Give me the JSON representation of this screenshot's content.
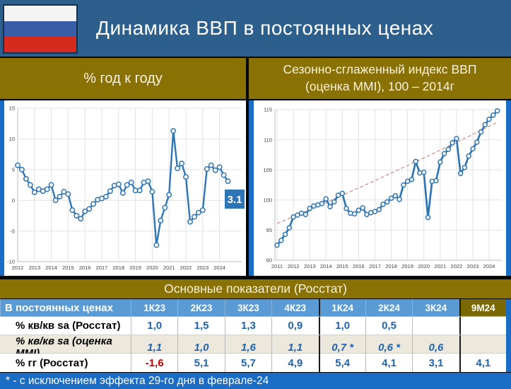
{
  "header": {
    "title": "Динамика ВВП в постоянных ценах",
    "flag": "russia-flag"
  },
  "panels": {
    "left": {
      "title": "% год к году"
    },
    "right": {
      "title_line1": "Сезонно-сглаженный индекс ВВП",
      "title_line2": "(оценка MMI), 100 – 2014г"
    }
  },
  "chart_data": [
    {
      "type": "line",
      "title": "% год к году",
      "series_name": "ВВП, % год к году, квартальные данные",
      "x_start": "2012Q1",
      "x_freq": "quarterly",
      "x_tick_labels": [
        "2012",
        "2013",
        "2014",
        "2015",
        "2016",
        "2017",
        "2018",
        "2019",
        "2020",
        "2021",
        "2022",
        "2023",
        "2024"
      ],
      "values": [
        5.7,
        5.0,
        3.5,
        2.5,
        1.3,
        1.8,
        1.5,
        1.8,
        2.5,
        0.0,
        0.6,
        1.4,
        1.0,
        -1.6,
        -2.5,
        -3.0,
        -1.8,
        -1.4,
        -0.6,
        0.1,
        0.3,
        0.6,
        1.5,
        2.4,
        2.6,
        1.2,
        2.5,
        2.9,
        1.6,
        1.6,
        2.9,
        3.1,
        1.4,
        -7.3,
        -3.3,
        -1.2,
        0.9,
        11.3,
        5.2,
        6.0,
        3.8,
        -3.5,
        -2.7,
        -2.0,
        -1.6,
        5.1,
        5.7,
        4.9,
        5.4,
        4.1,
        3.1
      ],
      "ylim": [
        -10,
        15
      ],
      "yticks": [
        -10,
        -5,
        0,
        5,
        10,
        15
      ],
      "grid": true,
      "legend": "none",
      "marker": "circle",
      "line_color": "#2e75b6",
      "last_point_label": "3.1"
    },
    {
      "type": "line",
      "title": "Сезонно-сглаженный индекс ВВП (оценка MMI), 100 – 2014г",
      "series_name": "Индекс ВВП sa, 100 = 2014",
      "x_start": "2011Q1",
      "x_freq": "quarterly",
      "x_tick_labels": [
        "2011",
        "2012",
        "2013",
        "2014",
        "2015",
        "2016",
        "2017",
        "2018",
        "2019",
        "2020",
        "2021",
        "2022",
        "2023",
        "2024"
      ],
      "values": [
        92.5,
        93.3,
        94.3,
        95.4,
        97.2,
        97.5,
        97.8,
        97.6,
        98.6,
        99.0,
        99.2,
        99.4,
        100.2,
        98.9,
        99.7,
        100.8,
        101.1,
        98.6,
        97.8,
        97.7,
        98.3,
        98.7,
        97.6,
        97.9,
        98.1,
        98.4,
        99.3,
        99.7,
        100.3,
        100.7,
        100.1,
        102.5,
        103.1,
        103.4,
        106.4,
        104.5,
        104.6,
        97.1,
        103.1,
        103.2,
        106.3,
        107.7,
        108.4,
        109.5,
        110.2,
        104.4,
        105.4,
        107.3,
        108.5,
        109.6,
        111.3,
        112.5,
        113.4,
        114.1,
        114.8
      ],
      "ylim": [
        90,
        115
      ],
      "yticks": [
        90,
        95,
        100,
        105,
        110,
        115
      ],
      "grid": true,
      "legend": "none",
      "marker": "circle",
      "line_color": "#2e75b6",
      "trend": {
        "type": "exponential-dashed",
        "start": 96.1,
        "end": 112.9,
        "color": "#cf8a85"
      }
    }
  ],
  "table": {
    "band_title": "Основные показатели (Росстат)",
    "header": [
      "В постоянных ценах",
      "1К23",
      "2К23",
      "3К23",
      "4К23",
      "1К24",
      "2К24",
      "3К24",
      "9М24"
    ],
    "rows": [
      {
        "label": "% кв/кв sa (Росстат)",
        "italic": false,
        "values": [
          "1,0",
          "1,5",
          "1,3",
          "0,9",
          "1,0",
          "0,5",
          "",
          ""
        ]
      },
      {
        "label": "% кв/кв sa (оценка MMI)",
        "italic": true,
        "values": [
          "1,1",
          "1,0",
          "1,6",
          "1,1",
          "0,7 *",
          "0,6 *",
          "0,6",
          ""
        ]
      },
      {
        "label": "% гг (Росстат)",
        "italic": false,
        "values": [
          "-1,6",
          "5,1",
          "5,7",
          "4,9",
          "5,4",
          "4,1",
          "3,1",
          "4,1"
        ]
      }
    ]
  },
  "footnote": "* - с исключением эффекта 29-го дня в феврале-24",
  "colors": {
    "header_bg": "#2d5f8d",
    "band_gold": "#8a7103",
    "bright_blue_edge": "#1a6cc4",
    "table_header_blue": "#5b9bd5",
    "olive_column_header": "#7a6800",
    "shaded_row": "#ece9dc",
    "value_blue": "#2163ae",
    "negative_red": "#c00000",
    "line_blue": "#2e75b6",
    "trend_pink": "#cf8a85",
    "flag_white": "#f4f4f4",
    "flag_blue": "#3a5da8",
    "flag_red": "#d52b1e"
  }
}
